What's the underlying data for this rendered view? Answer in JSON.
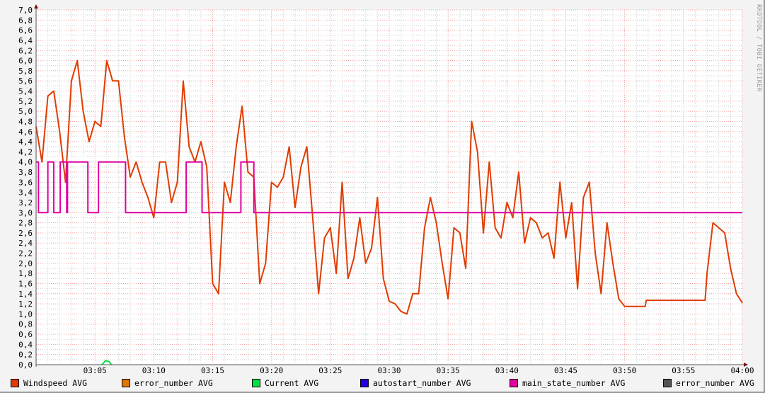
{
  "watermark": "RRDTOOL / TOBI OETIKER",
  "chart_data": {
    "type": "line",
    "title": "",
    "xlabel": "",
    "ylabel": "",
    "ylim": [
      0,
      7.0
    ],
    "xlim": [
      "03:00:00",
      "04:00:00"
    ],
    "grid": true,
    "legend_placement": "bottom",
    "y_ticks": [
      "0,0",
      "0,2",
      "0,4",
      "0,6",
      "0,8",
      "1,0",
      "1,2",
      "1,4",
      "1,6",
      "1,8",
      "2,0",
      "2,2",
      "2,4",
      "2,6",
      "2,8",
      "3,0",
      "3,2",
      "3,4",
      "3,6",
      "3,8",
      "4,0",
      "4,2",
      "4,4",
      "4,6",
      "4,8",
      "5,0",
      "5,2",
      "5,4",
      "5,6",
      "5,8",
      "6,0",
      "6,2",
      "6,4",
      "6,6",
      "6,8",
      "7,0"
    ],
    "x_ticks": [
      "03:05",
      "03:10",
      "03:15",
      "03:20",
      "03:25",
      "03:30",
      "03:35",
      "03:40",
      "03:45",
      "03:50",
      "03:55",
      "04:00"
    ],
    "series": [
      {
        "name": "Windspeed AVG",
        "color": "#e03c00",
        "x": [
          "03:00:00",
          "03:00:30",
          "03:01:00",
          "03:01:30",
          "03:02:00",
          "03:02:30",
          "03:03:00",
          "03:03:30",
          "03:04:00",
          "03:04:30",
          "03:05:00",
          "03:05:30",
          "03:06:00",
          "03:06:30",
          "03:07:00",
          "03:07:30",
          "03:08:00",
          "03:08:30",
          "03:09:00",
          "03:09:30",
          "03:10:00",
          "03:10:30",
          "03:11:00",
          "03:11:30",
          "03:12:00",
          "03:12:30",
          "03:13:00",
          "03:13:30",
          "03:14:00",
          "03:14:30",
          "03:15:00",
          "03:15:30",
          "03:16:00",
          "03:16:30",
          "03:17:00",
          "03:17:30",
          "03:18:00",
          "03:18:30",
          "03:19:00",
          "03:19:30",
          "03:20:00",
          "03:20:30",
          "03:21:00",
          "03:21:30",
          "03:22:00",
          "03:22:30",
          "03:23:00",
          "03:23:30",
          "03:24:00",
          "03:24:30",
          "03:25:00",
          "03:25:30",
          "03:26:00",
          "03:26:30",
          "03:27:00",
          "03:27:30",
          "03:28:00",
          "03:28:30",
          "03:29:00",
          "03:29:30",
          "03:30:00",
          "03:30:30",
          "03:31:00",
          "03:31:30",
          "03:32:00",
          "03:32:30",
          "03:33:00",
          "03:33:30",
          "03:34:00",
          "03:34:30",
          "03:35:00",
          "03:35:30",
          "03:36:00",
          "03:36:30",
          "03:37:00",
          "03:37:30",
          "03:38:00",
          "03:38:30",
          "03:39:00",
          "03:39:30",
          "03:40:00",
          "03:40:30",
          "03:41:00",
          "03:41:30",
          "03:42:00",
          "03:42:30",
          "03:43:00",
          "03:43:30",
          "03:44:00",
          "03:44:30",
          "03:45:00",
          "03:45:30",
          "03:46:00",
          "03:46:30",
          "03:47:00",
          "03:47:30",
          "03:48:00",
          "03:48:30",
          "03:49:00",
          "03:49:30",
          "03:50:00",
          "03:51:00",
          "03:51:45",
          "03:51:50",
          "03:56:50",
          "03:57:00",
          "03:57:30",
          "03:58:00",
          "03:58:30",
          "03:59:00",
          "03:59:30",
          "04:00:00"
        ],
        "values": [
          4.7,
          4.0,
          5.3,
          5.4,
          4.6,
          3.6,
          5.6,
          6.0,
          5.0,
          4.4,
          4.8,
          4.7,
          6.0,
          5.6,
          5.6,
          4.5,
          3.7,
          4.0,
          3.6,
          3.3,
          2.9,
          4.0,
          4.0,
          3.2,
          3.6,
          5.6,
          4.3,
          4.0,
          4.4,
          3.9,
          1.6,
          1.4,
          3.6,
          3.2,
          4.3,
          5.1,
          3.8,
          3.7,
          1.6,
          2.0,
          3.6,
          3.5,
          3.7,
          4.3,
          3.1,
          3.9,
          4.3,
          2.9,
          1.4,
          2.5,
          2.7,
          1.8,
          3.6,
          1.7,
          2.1,
          2.9,
          2.0,
          2.3,
          3.3,
          1.7,
          1.25,
          1.2,
          1.05,
          1.0,
          1.4,
          1.4,
          2.7,
          3.3,
          2.8,
          2.0,
          1.3,
          2.7,
          2.6,
          1.9,
          4.8,
          4.2,
          2.6,
          4.0,
          2.7,
          2.5,
          3.2,
          2.9,
          3.8,
          2.4,
          2.9,
          2.8,
          2.5,
          2.6,
          2.1,
          3.6,
          2.5,
          3.2,
          1.5,
          3.3,
          3.6,
          2.2,
          1.4,
          2.8,
          2.0,
          1.3,
          1.15,
          1.15,
          1.15,
          1.27,
          1.27,
          1.8,
          2.8,
          2.7,
          2.6,
          1.9,
          1.4,
          1.22
        ]
      },
      {
        "name": "error_number AVG",
        "color": "#e07800",
        "x": [],
        "values": []
      },
      {
        "name": "Current AVG",
        "color": "#00e040",
        "x": [
          "03:05:36",
          "03:05:54",
          "03:06:12",
          "03:06:24"
        ],
        "values": [
          0.0,
          0.08,
          0.06,
          0.0
        ]
      },
      {
        "name": "autostart_number AVG",
        "color": "#2000e0",
        "x": [],
        "values": []
      },
      {
        "name": "main_state_number AVG",
        "color": "#e000a0",
        "step": true,
        "x": [
          "03:00:00",
          "03:00:12",
          "03:01:00",
          "03:01:30",
          "03:02:03",
          "03:02:36",
          "03:02:40",
          "03:04:24",
          "03:05:18",
          "03:07:36",
          "03:12:45",
          "03:14:06",
          "03:17:24",
          "03:18:30",
          "04:00:00"
        ],
        "values": [
          4.0,
          3.0,
          4.0,
          3.0,
          4.0,
          3.0,
          4.0,
          3.0,
          4.0,
          3.0,
          4.0,
          3.0,
          4.0,
          3.0,
          3.0
        ]
      },
      {
        "name": "error_number AVG",
        "color": "#555555",
        "x": [],
        "values": []
      }
    ]
  }
}
